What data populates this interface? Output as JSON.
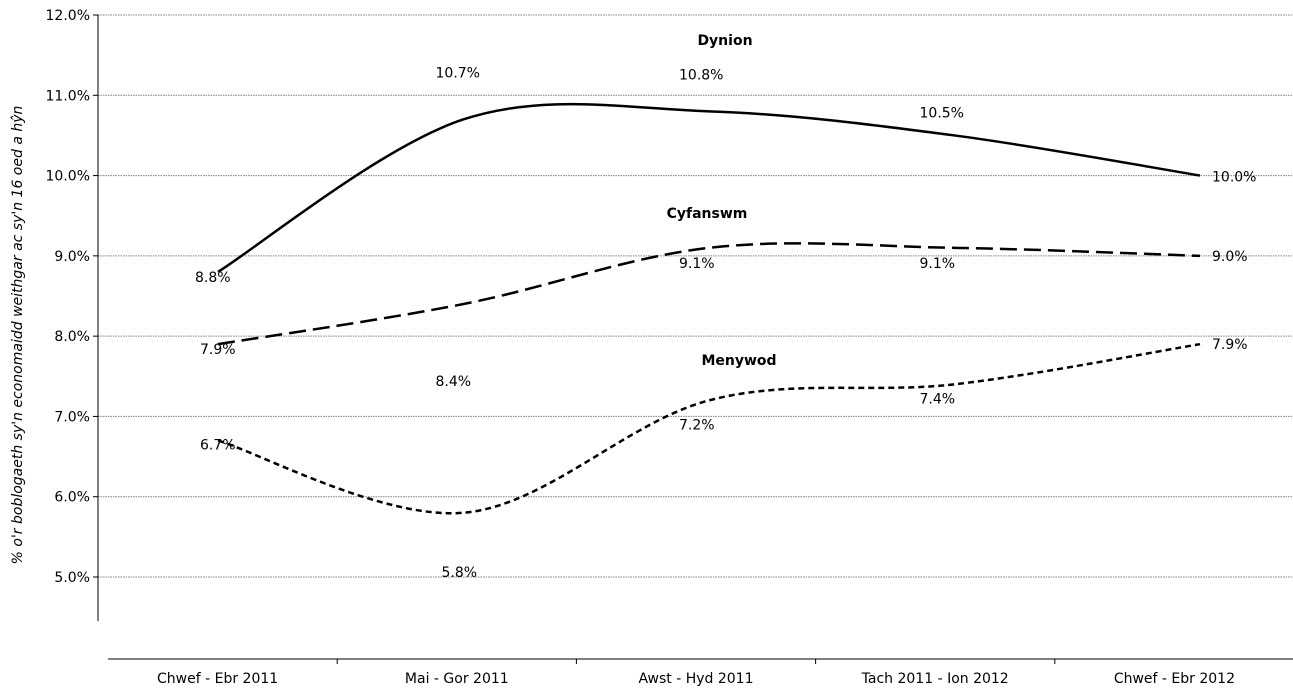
{
  "chart_data": {
    "type": "line",
    "title": "",
    "ylabel": "% o'r boblogaeth sy'n economaidd weithgar ac sy'n 16 oed a hŷn",
    "xlabel": "",
    "categories": [
      "Chwef - Ebr 2011",
      "Mai - Gor 2011",
      "Awst - Hyd 2011",
      "Tach 2011 - Ion 2012",
      "Chwef - Ebr 2012"
    ],
    "ylim": [
      4.45,
      12.0
    ],
    "yticks": [
      5.0,
      6.0,
      7.0,
      8.0,
      9.0,
      10.0,
      11.0,
      12.0
    ],
    "ytick_labels": [
      "5.0%",
      "6.0%",
      "7.0%",
      "8.0%",
      "9.0%",
      "10.0%",
      "11.0%",
      "12.0%"
    ],
    "grid": true,
    "smooth": true,
    "series": [
      {
        "name": "Dynion",
        "values": [
          8.8,
          10.7,
          10.8,
          10.5,
          10.0
        ],
        "labels": [
          "8.8%",
          "10.7%",
          "10.8%",
          "10.5%",
          "10.0%"
        ],
        "style": "solid",
        "color": "#000000"
      },
      {
        "name": "Cyfanswm",
        "values": [
          7.9,
          8.4,
          9.1,
          9.1,
          9.0
        ],
        "labels": [
          "7.9%",
          "8.4%",
          "9.1%",
          "9.1%",
          "9.0%"
        ],
        "style": "long-dash",
        "color": "#000000"
      },
      {
        "name": "Menywod",
        "values": [
          6.7,
          5.8,
          7.2,
          7.4,
          7.9
        ],
        "labels": [
          "6.7%",
          "5.8%",
          "7.2%",
          "7.4%",
          "7.9%"
        ],
        "style": "short-dash",
        "color": "#000000"
      }
    ]
  }
}
